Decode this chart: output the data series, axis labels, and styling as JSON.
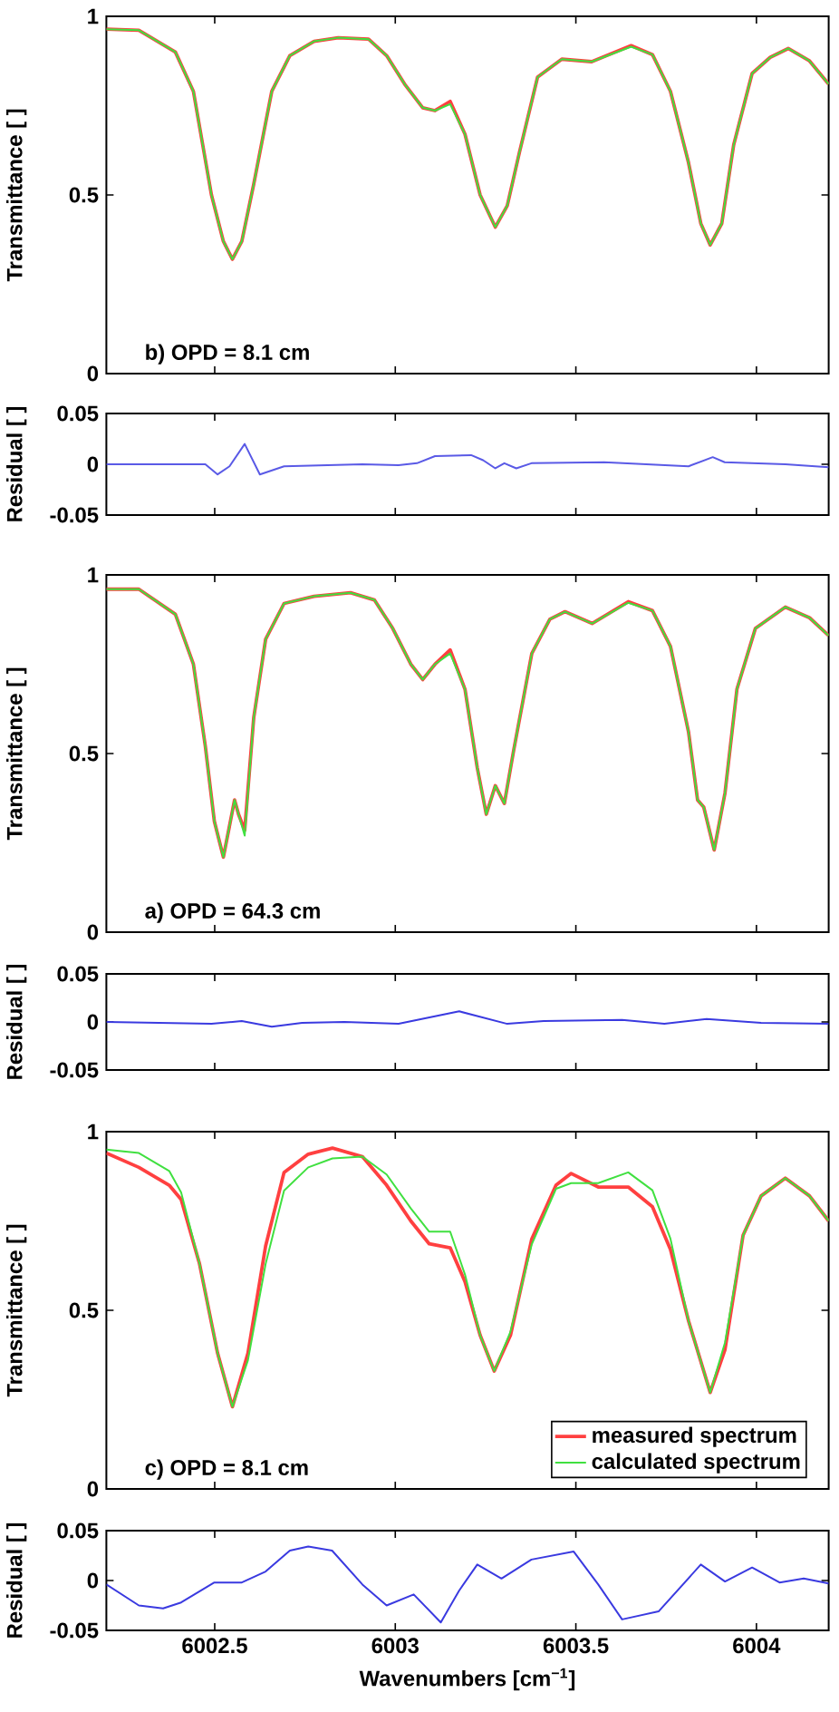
{
  "chart_data": [
    {
      "type": "line",
      "ylabel": "Transmittance [ ]",
      "annotations": [
        "b) OPD = 8.1 cm"
      ],
      "xlim": [
        6002.2,
        6004.2
      ],
      "xticks": [
        6002.5,
        6003,
        6003.5,
        6004
      ],
      "ylim": [
        0,
        1
      ],
      "yticks": [
        0,
        0.5,
        1
      ],
      "tick_labels": "y",
      "x": [
        6002.2,
        6002.29,
        6002.391,
        6002.441,
        6002.491,
        6002.524,
        6002.549,
        6002.575,
        6002.608,
        6002.658,
        6002.708,
        6002.775,
        6002.842,
        6002.926,
        6002.976,
        6003.026,
        6003.076,
        6003.11,
        6003.152,
        6003.193,
        6003.235,
        6003.277,
        6003.31,
        6003.344,
        6003.394,
        6003.461,
        6003.544,
        6003.653,
        6003.712,
        6003.762,
        6003.812,
        6003.846,
        6003.872,
        6003.904,
        6003.937,
        6003.988,
        6004.038,
        6004.088,
        6004.146,
        6004.2
      ],
      "series": [
        {
          "color": "#ff4040",
          "values": [
            0.964,
            0.961,
            0.9,
            0.79,
            0.5,
            0.37,
            0.32,
            0.37,
            0.53,
            0.79,
            0.89,
            0.93,
            0.94,
            0.936,
            0.89,
            0.81,
            0.744,
            0.736,
            0.762,
            0.67,
            0.5,
            0.41,
            0.47,
            0.62,
            0.83,
            0.88,
            0.873,
            0.918,
            0.893,
            0.79,
            0.59,
            0.42,
            0.36,
            0.42,
            0.64,
            0.84,
            0.885,
            0.91,
            0.876,
            0.81
          ]
        },
        {
          "color": "#40e040",
          "values": [
            0.964,
            0.961,
            0.9,
            0.79,
            0.5,
            0.37,
            0.32,
            0.37,
            0.53,
            0.79,
            0.89,
            0.93,
            0.94,
            0.936,
            0.89,
            0.81,
            0.744,
            0.736,
            0.754,
            0.67,
            0.5,
            0.41,
            0.47,
            0.62,
            0.83,
            0.88,
            0.873,
            0.915,
            0.893,
            0.79,
            0.59,
            0.42,
            0.36,
            0.42,
            0.64,
            0.84,
            0.885,
            0.91,
            0.876,
            0.81
          ]
        }
      ]
    },
    {
      "type": "line",
      "ylabel": "Residual [ ]",
      "xlim": [
        6002.2,
        6004.2
      ],
      "xticks": [
        6002.5,
        6003,
        6003.5,
        6004
      ],
      "ylim": [
        -0.05,
        0.05
      ],
      "yticks": [
        -0.05,
        0,
        0.05
      ],
      "tick_labels": "y",
      "x": [
        6002.2,
        6002.34,
        6002.474,
        6002.508,
        6002.541,
        6002.583,
        6002.625,
        6002.692,
        6002.909,
        6003.009,
        6003.06,
        6003.11,
        6003.21,
        6003.243,
        6003.277,
        6003.302,
        6003.335,
        6003.377,
        6003.578,
        6003.812,
        6003.879,
        6003.912,
        6004.08,
        6004.2
      ],
      "series": [
        {
          "color": "#5a5ae6",
          "values": [
            0,
            0,
            0,
            -0.01,
            -0.002,
            0.02,
            -0.01,
            -0.002,
            0,
            -0.001,
            0.001,
            0.008,
            0.009,
            0.004,
            -0.004,
            0.001,
            -0.004,
            0.001,
            0.002,
            -0.002,
            0.007,
            0.002,
            0,
            -0.003
          ]
        }
      ]
    },
    {
      "type": "line",
      "ylabel": "Transmittance [ ]",
      "annotations": [
        "a) OPD = 64.3 cm"
      ],
      "xlim": [
        6002.2,
        6004.2
      ],
      "xticks": [
        6002.5,
        6003,
        6003.5,
        6004
      ],
      "ylim": [
        0,
        1
      ],
      "yticks": [
        0,
        0.5,
        1
      ],
      "tick_labels": "y",
      "x": [
        6002.2,
        6002.29,
        6002.391,
        6002.441,
        6002.474,
        6002.499,
        6002.524,
        6002.555,
        6002.566,
        6002.583,
        6002.608,
        6002.641,
        6002.692,
        6002.775,
        6002.876,
        6002.942,
        6002.993,
        6003.043,
        6003.076,
        6003.11,
        6003.152,
        6003.193,
        6003.227,
        6003.252,
        6003.277,
        6003.302,
        6003.328,
        6003.378,
        6003.428,
        6003.47,
        6003.545,
        6003.645,
        6003.712,
        6003.762,
        6003.812,
        6003.837,
        6003.854,
        6003.883,
        6003.913,
        6003.946,
        6003.997,
        6004.08,
        6004.147,
        6004.2
      ],
      "series": [
        {
          "color": "#ff4040",
          "values": [
            0.96,
            0.96,
            0.89,
            0.75,
            0.52,
            0.31,
            0.21,
            0.37,
            0.33,
            0.285,
            0.6,
            0.82,
            0.92,
            0.94,
            0.95,
            0.93,
            0.85,
            0.75,
            0.707,
            0.75,
            0.79,
            0.68,
            0.46,
            0.33,
            0.41,
            0.36,
            0.51,
            0.78,
            0.876,
            0.897,
            0.864,
            0.925,
            0.9,
            0.8,
            0.56,
            0.37,
            0.35,
            0.23,
            0.39,
            0.68,
            0.85,
            0.91,
            0.88,
            0.83
          ]
        },
        {
          "color": "#40e040",
          "values": [
            0.96,
            0.96,
            0.89,
            0.75,
            0.52,
            0.31,
            0.21,
            0.37,
            0.33,
            0.27,
            0.6,
            0.82,
            0.92,
            0.94,
            0.95,
            0.93,
            0.85,
            0.75,
            0.707,
            0.75,
            0.78,
            0.68,
            0.46,
            0.33,
            0.41,
            0.36,
            0.51,
            0.78,
            0.876,
            0.897,
            0.864,
            0.922,
            0.9,
            0.8,
            0.56,
            0.37,
            0.35,
            0.23,
            0.39,
            0.68,
            0.85,
            0.91,
            0.88,
            0.83
          ]
        }
      ]
    },
    {
      "type": "line",
      "ylabel": "Residual [ ]",
      "xlim": [
        6002.2,
        6004.2
      ],
      "xticks": [
        6002.5,
        6003,
        6003.5,
        6004
      ],
      "ylim": [
        -0.05,
        0.05
      ],
      "yticks": [
        -0.05,
        0,
        0.05
      ],
      "tick_labels": "y",
      "x": [
        6002.2,
        6002.491,
        6002.575,
        6002.658,
        6002.742,
        6002.859,
        6003.009,
        6003.177,
        6003.31,
        6003.411,
        6003.628,
        6003.745,
        6003.862,
        6004.013,
        6004.2
      ],
      "series": [
        {
          "color": "#3a3ae0",
          "values": [
            0,
            -0.002,
            0.001,
            -0.005,
            -0.001,
            0,
            -0.002,
            0.011,
            -0.002,
            0.001,
            0.002,
            -0.002,
            0.003,
            -0.001,
            -0.002
          ]
        }
      ]
    },
    {
      "type": "line",
      "ylabel": "Transmittance [ ]",
      "annotations": [
        "c) OPD = 8.1 cm"
      ],
      "legend": "bottom right",
      "xlim": [
        6002.2,
        6004.2
      ],
      "xticks": [
        6002.5,
        6003,
        6003.5,
        6004
      ],
      "ylim": [
        0,
        1
      ],
      "yticks": [
        0,
        0.5,
        1
      ],
      "tick_labels": "y",
      "x": [
        6002.2,
        6002.29,
        6002.374,
        6002.407,
        6002.458,
        6002.508,
        6002.549,
        6002.592,
        6002.641,
        6002.692,
        6002.759,
        6002.826,
        6002.909,
        6002.976,
        6003.043,
        6003.094,
        6003.152,
        6003.193,
        6003.235,
        6003.274,
        6003.319,
        6003.378,
        6003.445,
        6003.487,
        6003.562,
        6003.645,
        6003.712,
        6003.762,
        6003.812,
        6003.872,
        6003.913,
        6003.963,
        6004.013,
        6004.08,
        6004.147,
        6004.2
      ],
      "series": [
        {
          "name": "measured spectrum",
          "color": "#ff4040",
          "values": [
            0.94,
            0.9,
            0.85,
            0.81,
            0.63,
            0.38,
            0.23,
            0.38,
            0.68,
            0.886,
            0.937,
            0.954,
            0.93,
            0.85,
            0.75,
            0.686,
            0.675,
            0.58,
            0.43,
            0.33,
            0.43,
            0.7,
            0.85,
            0.883,
            0.845,
            0.845,
            0.79,
            0.67,
            0.47,
            0.27,
            0.39,
            0.71,
            0.82,
            0.87,
            0.82,
            0.75
          ]
        },
        {
          "name": "calculated spectrum",
          "color": "#40e040",
          "values": [
            0.95,
            0.94,
            0.89,
            0.83,
            0.63,
            0.38,
            0.23,
            0.36,
            0.63,
            0.835,
            0.9,
            0.925,
            0.93,
            0.88,
            0.785,
            0.72,
            0.72,
            0.6,
            0.43,
            0.33,
            0.44,
            0.685,
            0.84,
            0.856,
            0.856,
            0.886,
            0.836,
            0.7,
            0.47,
            0.27,
            0.41,
            0.71,
            0.82,
            0.87,
            0.82,
            0.75
          ]
        }
      ]
    },
    {
      "type": "line",
      "ylabel": "Residual [ ]",
      "xlabel": "Wavenumbers [cm$^{−1}$]",
      "xlim": [
        6002.2,
        6004.2
      ],
      "xticks": [
        6002.5,
        6003,
        6003.5,
        6004
      ],
      "ylim": [
        -0.05,
        0.05
      ],
      "yticks": [
        -0.05,
        0,
        0.05
      ],
      "x": [
        6002.2,
        6002.29,
        6002.357,
        6002.407,
        6002.499,
        6002.575,
        6002.641,
        6002.708,
        6002.759,
        6002.825,
        6002.909,
        6002.976,
        6003.051,
        6003.126,
        6003.177,
        6003.227,
        6003.294,
        6003.377,
        6003.494,
        6003.562,
        6003.628,
        6003.729,
        6003.846,
        6003.913,
        6003.988,
        6004.064,
        6004.131,
        6004.2
      ],
      "series": [
        {
          "color": "#3a3ae0",
          "values": [
            -0.004,
            -0.025,
            -0.028,
            -0.022,
            -0.002,
            -0.002,
            0.009,
            0.03,
            0.034,
            0.03,
            -0.004,
            -0.025,
            -0.014,
            -0.042,
            -0.01,
            0.016,
            0.002,
            0.021,
            0.029,
            -0.004,
            -0.039,
            -0.031,
            0.016,
            -0.001,
            0.013,
            -0.002,
            0.002,
            -0.003
          ]
        }
      ]
    }
  ]
}
